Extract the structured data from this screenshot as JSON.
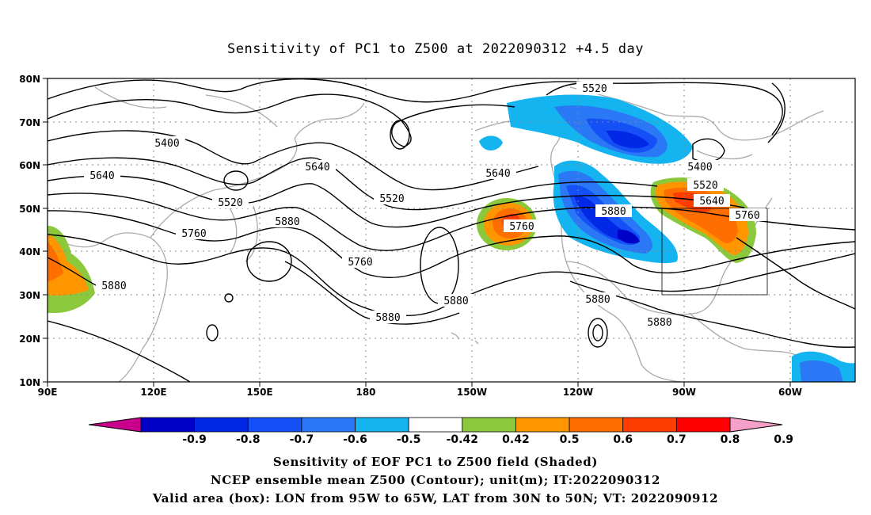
{
  "title": "Sensitivity of PC1 to Z500 at 2022090312 +4.5 day",
  "map": {
    "lat_labels": [
      "80N",
      "70N",
      "60N",
      "50N",
      "40N",
      "30N",
      "20N",
      "10N"
    ],
    "lon_labels": [
      "90E",
      "120E",
      "150E",
      "180",
      "150W",
      "120W",
      "90W",
      "60W"
    ],
    "contour_labels": [
      "5520",
      "5400",
      "5640",
      "5520",
      "5760",
      "5880",
      "5640",
      "5520",
      "5760",
      "5640",
      "5760",
      "5880",
      "5880",
      "5880",
      "5880",
      "5400",
      "5520",
      "5640",
      "5760",
      "5880",
      "5880"
    ],
    "valid_box": {
      "lon_west": -95,
      "lon_east": -65,
      "lat_south": 30,
      "lat_north": 50
    }
  },
  "colorbar": {
    "labels": [
      "-0.9",
      "-0.8",
      "-0.7",
      "-0.6",
      "-0.5",
      "-0.42",
      "0.42",
      "0.5",
      "0.6",
      "0.7",
      "0.8",
      "0.9"
    ],
    "colors": [
      "#c8008c",
      "#0000c8",
      "#0028e6",
      "#1450f5",
      "#2a78f5",
      "#14b4f0",
      "#ffffff",
      "#8cc83c",
      "#ff9600",
      "#ff6e00",
      "#ff3c00",
      "#ff0000",
      "#f5a0c8"
    ]
  },
  "caption": {
    "line1": "Sensitivity of EOF PC1 to Z500 field (Shaded)",
    "line2": "NCEP ensemble mean Z500 (Contour); unit(m); IT:2022090312",
    "line3": "Valid area (box): LON from 95W to 65W, LAT from 30N to 50N; VT: 2022090912"
  }
}
